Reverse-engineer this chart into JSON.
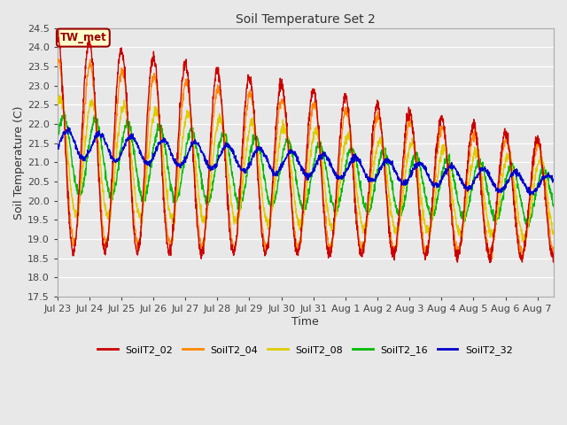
{
  "title": "Soil Temperature Set 2",
  "xlabel": "Time",
  "ylabel": "Soil Temperature (C)",
  "ylim": [
    17.5,
    24.5
  ],
  "yticks": [
    17.5,
    18.0,
    18.5,
    19.0,
    19.5,
    20.0,
    20.5,
    21.0,
    21.5,
    22.0,
    22.5,
    23.0,
    23.5,
    24.0,
    24.5
  ],
  "series": [
    "SoilT2_02",
    "SoilT2_04",
    "SoilT2_08",
    "SoilT2_16",
    "SoilT2_32"
  ],
  "colors": [
    "#cc0000",
    "#ff8800",
    "#ddcc00",
    "#00bb00",
    "#0000cc"
  ],
  "annotation_label": "TW_met",
  "annotation_color": "#990000",
  "annotation_bg": "#ffffcc",
  "background_color": "#e8e8e8",
  "grid_color": "#ffffff",
  "tick_labels": [
    "Jul 23",
    "Jul 24",
    "Jul 25",
    "Jul 26",
    "Jul 27",
    "Jul 28",
    "Jul 29",
    "Jul 30",
    "Jul 31",
    "Aug 1",
    "Aug 2",
    "Aug 3",
    "Aug 4",
    "Aug 5",
    "Aug 6",
    "Aug 7"
  ]
}
